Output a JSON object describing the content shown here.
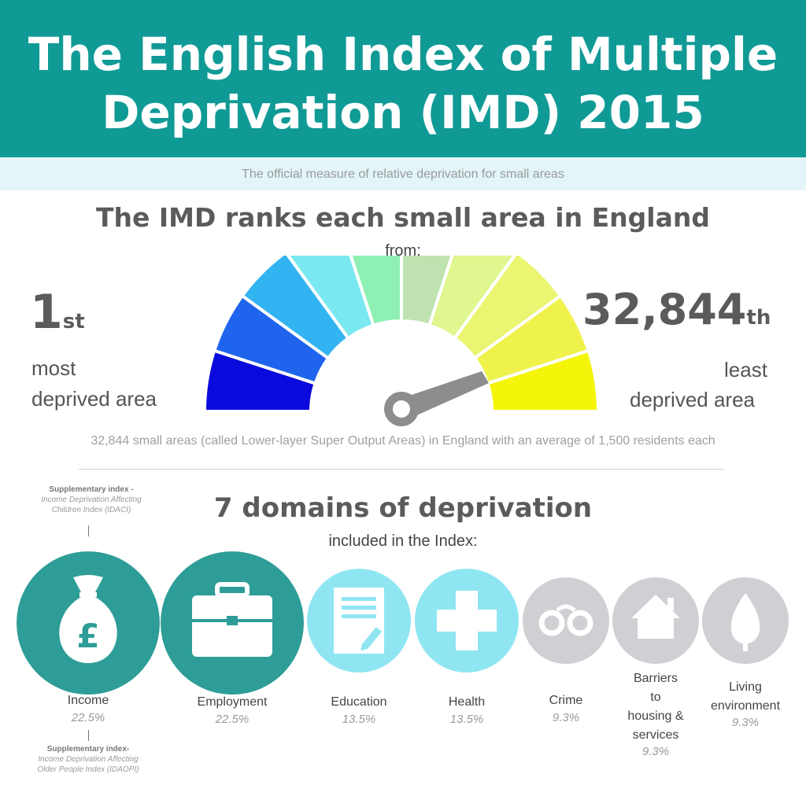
{
  "header": {
    "title_line1": "The English Index of Multiple",
    "title_line2": "Deprivation (IMD) 2015",
    "subtitle": "The official measure of relative deprivation for small areas"
  },
  "ranks": {
    "heading": "The IMD ranks each small area in England",
    "from": "from:",
    "first_number": "1",
    "first_suffix": "st",
    "first_line1": "most",
    "first_line2": "deprived area",
    "last_number": "32,844",
    "last_suffix": "th",
    "last_line1": "least",
    "last_line2": "deprived area",
    "footnote": "32,844 small areas (called Lower-layer Super Output Areas) in England with an average of 1,500 residents each",
    "gauge_colors": [
      "#0a0adc",
      "#1f64ec",
      "#33b4f2",
      "#7ae8f0",
      "#8ef0b4",
      "#bfe3b0",
      "#dff78e",
      "#eaf571",
      "#f0f24c",
      "#f5f50a"
    ]
  },
  "domains": {
    "heading": "7 domains of deprivation",
    "sub": "included in the Index:",
    "supp_top_bold": "Supplementary index -",
    "supp_top_italic_1": "Income Deprivation Affecting",
    "supp_top_italic_2": "Children Index (IDACI)",
    "supp_bottom_bold": "Supplementary index-",
    "supp_bottom_italic_1": "Income Deprivation Affecting",
    "supp_bottom_italic_2": "Older People Index (IDAOPI)",
    "items": [
      {
        "label": "Income",
        "weight": "22.5%",
        "icon": "money-bag-icon",
        "color": "#2e9d97"
      },
      {
        "label": "Employment",
        "weight": "22.5%",
        "icon": "briefcase-icon",
        "color": "#2e9d97"
      },
      {
        "label": "Education",
        "weight": "13.5%",
        "icon": "document-icon",
        "color": "#8fe6f2"
      },
      {
        "label": "Health",
        "weight": "13.5%",
        "icon": "cross-icon",
        "color": "#8fe6f2"
      },
      {
        "label": "Crime",
        "weight": "9.3%",
        "icon": "handcuffs-icon",
        "color": "#d0d0d4"
      },
      {
        "label_1": "Barriers",
        "label_2": "to",
        "label_3": "housing &",
        "label_4": "services",
        "weight": "9.3%",
        "icon": "house-icon",
        "color": "#d0d0d4"
      },
      {
        "label_1": "Living",
        "label_2": "environment",
        "weight": "9.3%",
        "icon": "tree-icon",
        "color": "#d0d0d4"
      }
    ]
  }
}
